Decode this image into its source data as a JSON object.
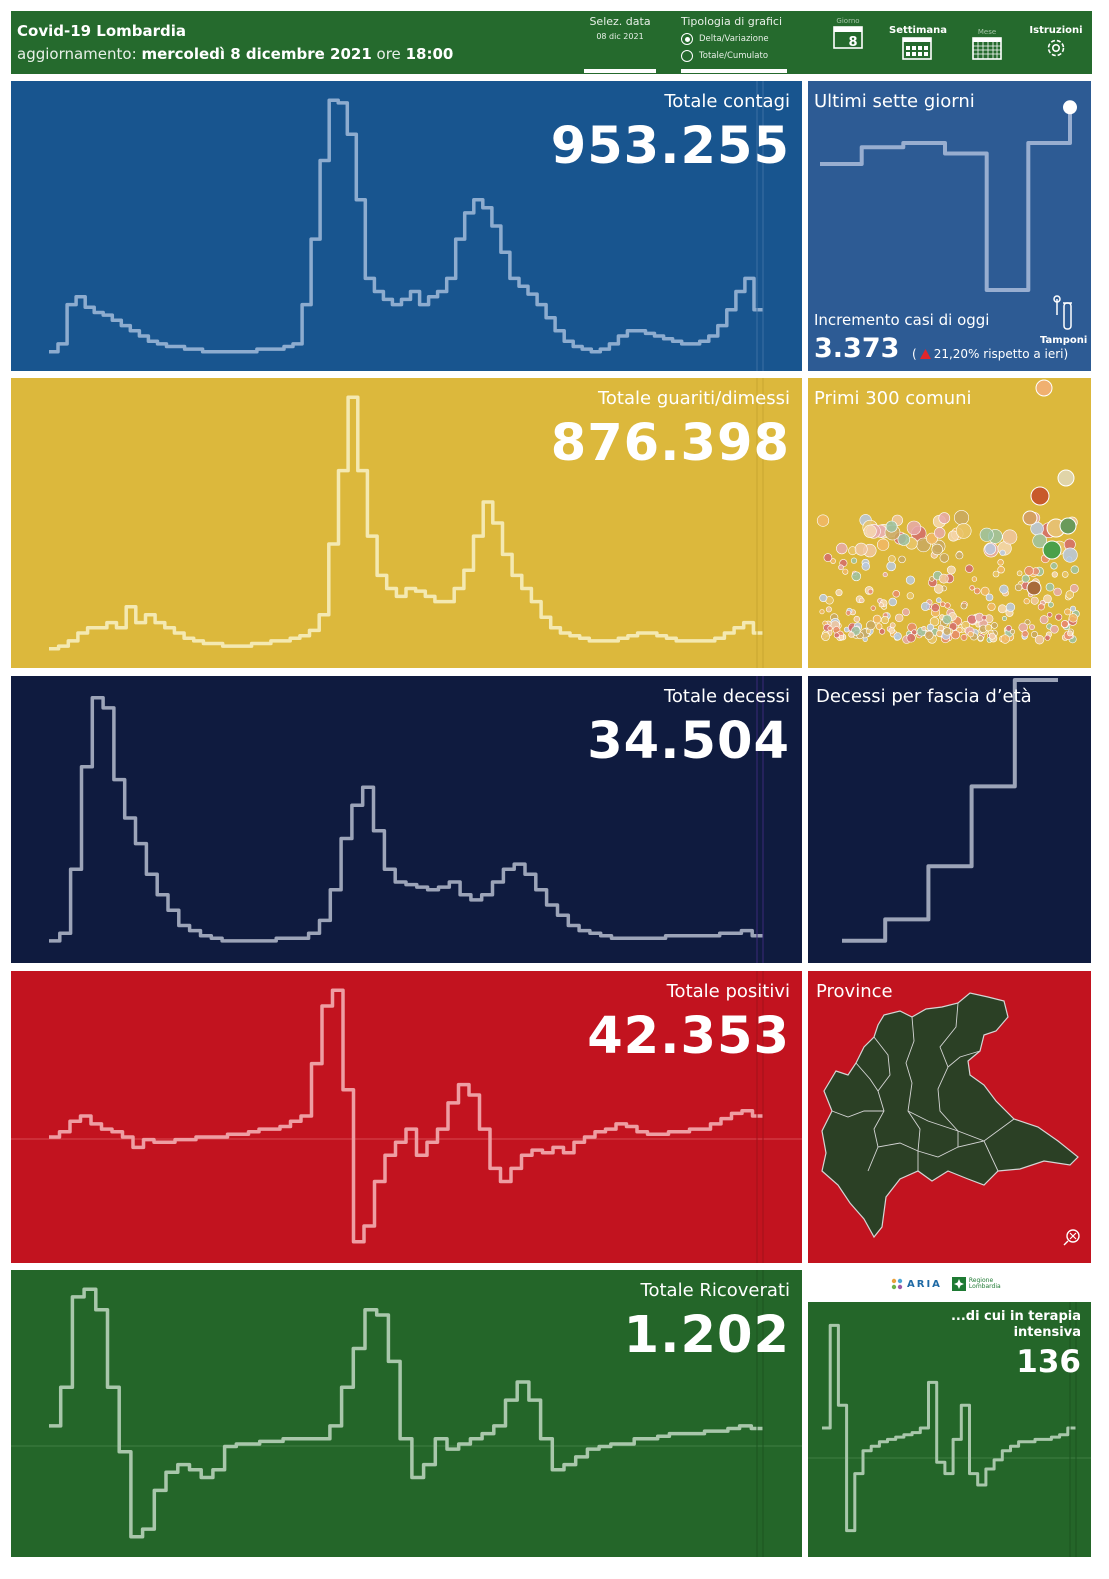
{
  "header": {
    "title": "Covid-19 Lombardia",
    "update_prefix": "aggiornamento:",
    "update_date": "mercoledì 8 dicembre 2021",
    "update_time_prefix": "ore",
    "update_time": "18:00",
    "select_date_label": "Selez. data",
    "select_date_value": "08 dic 2021",
    "chart_type_label": "Tipologia di grafici",
    "chart_type_options": [
      "Delta/Variazione",
      "Totale/Cumulato"
    ],
    "chart_type_selected": "Delta/Variazione",
    "nav": {
      "day_label": "Giorno",
      "day_number": "8",
      "week_label": "Settimana",
      "month_label": "Mese",
      "instructions_label": "Istruzioni"
    }
  },
  "colors": {
    "header_green": "#256a2d",
    "contagi_blue": "#18558f",
    "guariti_yellow": "#dcb83c",
    "decessi_navy": "#0f1b3f",
    "positivi_red": "#c2131f",
    "ricoverati_green": "#246629"
  },
  "panels": {
    "contagi": {
      "title": "Totale contagi",
      "value": "953.255"
    },
    "guariti": {
      "title": "Totale guariti/dimessi",
      "value": "876.398"
    },
    "decessi": {
      "title": "Totale decessi",
      "value": "34.504"
    },
    "positivi": {
      "title": "Totale positivi",
      "value": "42.353"
    },
    "ricoverati": {
      "title": "Totale Ricoverati",
      "value": "1.202"
    }
  },
  "side": {
    "last_seven": {
      "title": "Ultimi sette giorni",
      "increment_label": "Incremento casi di oggi",
      "increment_value": "3.373",
      "change_open": "(",
      "change_text": "21,20% rispetto a  ieri)",
      "tamponi_label": "Tamponi"
    },
    "comuni": {
      "title": "Primi 300 comuni"
    },
    "eta": {
      "title": "Decessi per fascia d’età"
    },
    "province": {
      "title": "Province"
    },
    "logos": {
      "aria": "ARIA",
      "regione": "Regione Lombardia"
    },
    "terapia": {
      "title_line1": "...di cui in terapia",
      "title_line2": "intensiva",
      "value": "136"
    }
  },
  "chart_data": [
    {
      "type": "line",
      "name": "contagi",
      "y": [
        0.02,
        0.05,
        0.2,
        0.23,
        0.19,
        0.17,
        0.16,
        0.14,
        0.12,
        0.1,
        0.08,
        0.06,
        0.05,
        0.04,
        0.04,
        0.03,
        0.03,
        0.02,
        0.02,
        0.02,
        0.02,
        0.02,
        0.02,
        0.03,
        0.03,
        0.03,
        0.04,
        0.05,
        0.2,
        0.45,
        0.75,
        0.98,
        0.97,
        0.85,
        0.6,
        0.3,
        0.25,
        0.22,
        0.2,
        0.22,
        0.25,
        0.2,
        0.23,
        0.25,
        0.3,
        0.45,
        0.55,
        0.6,
        0.57,
        0.5,
        0.4,
        0.3,
        0.27,
        0.24,
        0.2,
        0.15,
        0.1,
        0.06,
        0.04,
        0.03,
        0.02,
        0.03,
        0.05,
        0.08,
        0.1,
        0.1,
        0.09,
        0.08,
        0.07,
        0.06,
        0.05,
        0.05,
        0.06,
        0.08,
        0.12,
        0.18,
        0.25,
        0.3,
        0.18
      ]
    },
    {
      "type": "line",
      "name": "guariti",
      "y": [
        0.02,
        0.03,
        0.05,
        0.08,
        0.1,
        0.1,
        0.12,
        0.1,
        0.18,
        0.12,
        0.15,
        0.12,
        0.1,
        0.08,
        0.06,
        0.05,
        0.04,
        0.04,
        0.03,
        0.03,
        0.03,
        0.04,
        0.04,
        0.05,
        0.05,
        0.06,
        0.07,
        0.09,
        0.15,
        0.42,
        0.7,
        0.98,
        0.7,
        0.45,
        0.3,
        0.25,
        0.22,
        0.25,
        0.24,
        0.22,
        0.2,
        0.2,
        0.25,
        0.32,
        0.45,
        0.58,
        0.5,
        0.38,
        0.3,
        0.25,
        0.2,
        0.14,
        0.1,
        0.08,
        0.07,
        0.06,
        0.05,
        0.05,
        0.05,
        0.06,
        0.07,
        0.08,
        0.08,
        0.07,
        0.06,
        0.05,
        0.05,
        0.05,
        0.05,
        0.06,
        0.08,
        0.1,
        0.12,
        0.08
      ]
    },
    {
      "type": "line",
      "name": "decessi",
      "y": [
        0.02,
        0.05,
        0.3,
        0.7,
        0.97,
        0.93,
        0.65,
        0.5,
        0.4,
        0.28,
        0.2,
        0.14,
        0.08,
        0.06,
        0.04,
        0.03,
        0.02,
        0.02,
        0.02,
        0.02,
        0.02,
        0.03,
        0.03,
        0.03,
        0.05,
        0.1,
        0.22,
        0.42,
        0.55,
        0.62,
        0.45,
        0.3,
        0.25,
        0.24,
        0.23,
        0.22,
        0.23,
        0.25,
        0.2,
        0.18,
        0.2,
        0.25,
        0.3,
        0.32,
        0.28,
        0.22,
        0.16,
        0.12,
        0.08,
        0.06,
        0.05,
        0.04,
        0.03,
        0.03,
        0.03,
        0.03,
        0.03,
        0.04,
        0.04,
        0.04,
        0.04,
        0.04,
        0.05,
        0.05,
        0.06,
        0.04
      ]
    },
    {
      "type": "line",
      "name": "positivi",
      "y": [
        0.42,
        0.44,
        0.48,
        0.5,
        0.47,
        0.45,
        0.44,
        0.42,
        0.38,
        0.41,
        0.4,
        0.4,
        0.41,
        0.41,
        0.42,
        0.42,
        0.42,
        0.43,
        0.43,
        0.44,
        0.45,
        0.45,
        0.46,
        0.48,
        0.5,
        0.7,
        0.92,
        0.98,
        0.6,
        0.02,
        0.08,
        0.25,
        0.35,
        0.4,
        0.45,
        0.35,
        0.4,
        0.45,
        0.55,
        0.62,
        0.58,
        0.45,
        0.3,
        0.25,
        0.3,
        0.35,
        0.37,
        0.36,
        0.38,
        0.36,
        0.4,
        0.42,
        0.44,
        0.45,
        0.47,
        0.46,
        0.44,
        0.43,
        0.43,
        0.44,
        0.44,
        0.45,
        0.45,
        0.47,
        0.49,
        0.51,
        0.52,
        0.5
      ]
    },
    {
      "type": "line",
      "name": "ricoverati",
      "y": [
        0.45,
        0.6,
        0.95,
        0.98,
        0.9,
        0.6,
        0.35,
        0.02,
        0.05,
        0.2,
        0.27,
        0.3,
        0.28,
        0.25,
        0.28,
        0.37,
        0.38,
        0.38,
        0.39,
        0.39,
        0.4,
        0.4,
        0.4,
        0.4,
        0.45,
        0.6,
        0.75,
        0.9,
        0.88,
        0.7,
        0.4,
        0.25,
        0.3,
        0.4,
        0.36,
        0.38,
        0.4,
        0.42,
        0.45,
        0.55,
        0.62,
        0.55,
        0.4,
        0.28,
        0.3,
        0.33,
        0.36,
        0.37,
        0.38,
        0.38,
        0.4,
        0.4,
        0.41,
        0.42,
        0.42,
        0.42,
        0.43,
        0.43,
        0.44,
        0.45,
        0.44
      ]
    },
    {
      "type": "line",
      "name": "ultimi_sette_giorni",
      "y": [
        0.7,
        0.78,
        0.8,
        0.75,
        0.1,
        0.8,
        0.97
      ]
    },
    {
      "type": "line",
      "name": "decessi_fascia_eta",
      "y": [
        0.02,
        0.1,
        0.3,
        0.6,
        1.0
      ]
    },
    {
      "type": "line",
      "name": "terapia_intensiva",
      "y": [
        0.5,
        0.95,
        0.6,
        0.05,
        0.3,
        0.4,
        0.42,
        0.44,
        0.45,
        0.46,
        0.47,
        0.48,
        0.5,
        0.7,
        0.35,
        0.3,
        0.45,
        0.6,
        0.3,
        0.25,
        0.32,
        0.36,
        0.4,
        0.42,
        0.44,
        0.44,
        0.45,
        0.45,
        0.46,
        0.47,
        0.5
      ]
    }
  ]
}
